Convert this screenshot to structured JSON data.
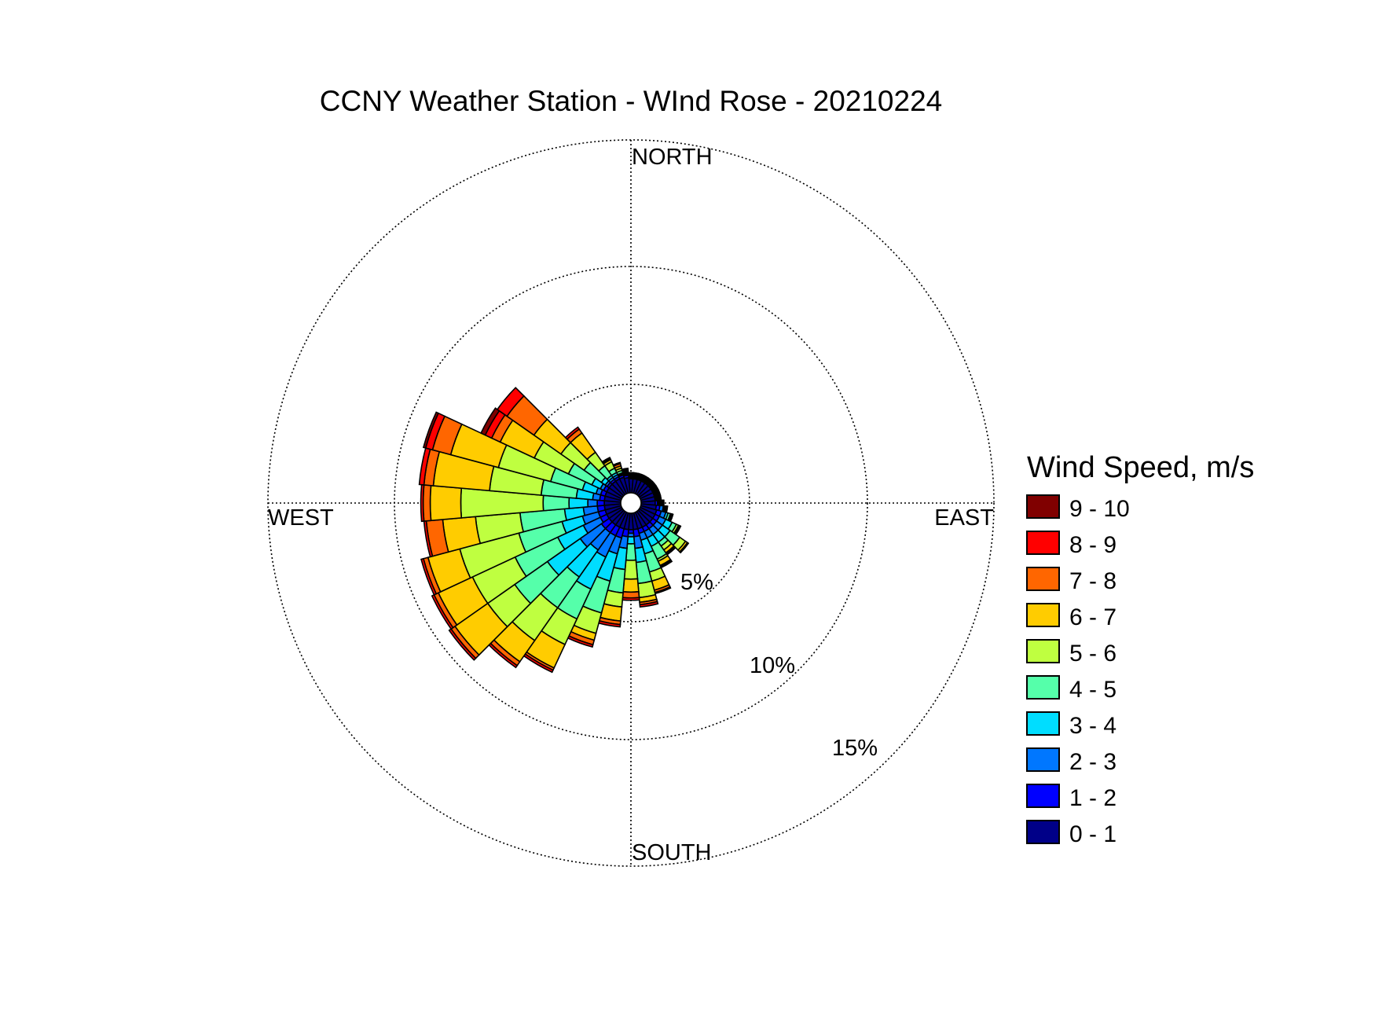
{
  "chart_data": {
    "type": "wind-rose",
    "title": "CCNY Weather Station - WInd Rose - 20210224",
    "direction_labels": {
      "north": "NORTH",
      "east": "EAST",
      "south": "SOUTH",
      "west": "WEST"
    },
    "radial_unit": "%",
    "radial_ticks": [
      {
        "value": 5,
        "label": "5%"
      },
      {
        "value": 10,
        "label": "10%"
      },
      {
        "value": 15,
        "label": "15%"
      }
    ],
    "rmax": 15,
    "grid": true,
    "legend": {
      "title": "Wind Speed, m/s",
      "position": "right",
      "bins": [
        {
          "label": "9 - 10",
          "color": "#800000"
        },
        {
          "label": "8 - 9",
          "color": "#ff0000"
        },
        {
          "label": "7 - 8",
          "color": "#ff6600"
        },
        {
          "label": "6 - 7",
          "color": "#ffcc00"
        },
        {
          "label": "5 - 6",
          "color": "#bfff40"
        },
        {
          "label": "4 - 5",
          "color": "#55ffaa"
        },
        {
          "label": "3 - 4",
          "color": "#00ddff"
        },
        {
          "label": "2 - 3",
          "color": "#0077ff"
        },
        {
          "label": "1 - 2",
          "color": "#0000ff"
        },
        {
          "label": "0 - 1",
          "color": "#000088"
        }
      ]
    },
    "bins_inner_to_outer": [
      "0 - 1",
      "1 - 2",
      "2 - 3",
      "3 - 4",
      "4 - 5",
      "5 - 6",
      "6 - 7",
      "7 - 8",
      "8 - 9",
      "9 - 10"
    ],
    "sectors": [
      {
        "direction_deg": 0,
        "cumulative": [
          0.6,
          0.65,
          0.7,
          0.75,
          0.8,
          0.82,
          0.84,
          0.85,
          0.86,
          0.86
        ]
      },
      {
        "direction_deg": 10,
        "cumulative": [
          0.6,
          0.65,
          0.7,
          0.75,
          0.8,
          0.82,
          0.84,
          0.85,
          0.86,
          0.86
        ]
      },
      {
        "direction_deg": 20,
        "cumulative": [
          0.6,
          0.65,
          0.7,
          0.75,
          0.8,
          0.82,
          0.84,
          0.85,
          0.86,
          0.86
        ]
      },
      {
        "direction_deg": 30,
        "cumulative": [
          0.6,
          0.65,
          0.7,
          0.75,
          0.8,
          0.82,
          0.84,
          0.85,
          0.86,
          0.86
        ]
      },
      {
        "direction_deg": 40,
        "cumulative": [
          0.6,
          0.65,
          0.7,
          0.75,
          0.8,
          0.82,
          0.84,
          0.85,
          0.86,
          0.86
        ]
      },
      {
        "direction_deg": 50,
        "cumulative": [
          0.6,
          0.65,
          0.7,
          0.75,
          0.8,
          0.82,
          0.84,
          0.85,
          0.86,
          0.86
        ]
      },
      {
        "direction_deg": 60,
        "cumulative": [
          0.6,
          0.65,
          0.7,
          0.75,
          0.8,
          0.82,
          0.84,
          0.85,
          0.86,
          0.86
        ]
      },
      {
        "direction_deg": 70,
        "cumulative": [
          0.6,
          0.65,
          0.7,
          0.75,
          0.8,
          0.82,
          0.84,
          0.85,
          0.86,
          0.86
        ]
      },
      {
        "direction_deg": 80,
        "cumulative": [
          0.6,
          0.65,
          0.7,
          0.75,
          0.8,
          0.82,
          0.84,
          0.85,
          0.86,
          0.86
        ]
      },
      {
        "direction_deg": 90,
        "cumulative": [
          0.6,
          0.7,
          0.75,
          0.8,
          0.85,
          0.9,
          0.93,
          0.95,
          0.97,
          0.97
        ]
      },
      {
        "direction_deg": 100,
        "cumulative": [
          0.65,
          0.8,
          0.95,
          1.0,
          1.05,
          1.08,
          1.1,
          1.12,
          1.13,
          1.13
        ]
      },
      {
        "direction_deg": 110,
        "cumulative": [
          0.7,
          0.9,
          1.1,
          1.2,
          1.3,
          1.35,
          1.38,
          1.4,
          1.42,
          1.42
        ]
      },
      {
        "direction_deg": 120,
        "cumulative": [
          0.7,
          0.9,
          1.2,
          1.5,
          1.7,
          1.8,
          1.85,
          1.88,
          1.9,
          1.9
        ]
      },
      {
        "direction_deg": 130,
        "cumulative": [
          0.7,
          0.9,
          1.2,
          1.6,
          2.1,
          2.4,
          2.5,
          2.52,
          2.55,
          2.55
        ]
      },
      {
        "direction_deg": 140,
        "cumulative": [
          0.7,
          0.9,
          1.2,
          1.6,
          1.8,
          2.0,
          2.15,
          2.2,
          2.25,
          2.25
        ]
      },
      {
        "direction_deg": 150,
        "cumulative": [
          0.7,
          0.9,
          1.2,
          1.6,
          2.2,
          2.3,
          2.5,
          2.55,
          2.6,
          2.6
        ]
      },
      {
        "direction_deg": 160,
        "cumulative": [
          0.7,
          0.9,
          1.2,
          1.8,
          2.6,
          3.0,
          3.4,
          3.5,
          3.55,
          3.55
        ]
      },
      {
        "direction_deg": 170,
        "cumulative": [
          0.7,
          1.0,
          1.5,
          2.1,
          3.0,
          3.6,
          3.8,
          3.9,
          4.0,
          4.0
        ]
      },
      {
        "direction_deg": 180,
        "cumulative": [
          0.7,
          0.85,
          1.0,
          1.3,
          2.0,
          2.8,
          3.35,
          3.6,
          3.7,
          3.7
        ]
      },
      {
        "direction_deg": 190,
        "cumulative": [
          0.7,
          1.0,
          1.5,
          2.4,
          3.4,
          4.0,
          4.6,
          4.75,
          4.85,
          4.85
        ]
      },
      {
        "direction_deg": 200,
        "cumulative": [
          0.7,
          1.1,
          1.8,
          3.0,
          4.4,
          5.3,
          5.6,
          5.8,
          5.9,
          5.9
        ]
      },
      {
        "direction_deg": 210,
        "cumulative": [
          0.7,
          1.1,
          2.1,
          3.6,
          5.0,
          6.2,
          7.3,
          7.4,
          7.5,
          7.5
        ]
      },
      {
        "direction_deg": 220,
        "cumulative": [
          0.7,
          1.1,
          2.0,
          3.4,
          5.0,
          6.7,
          7.8,
          8.0,
          8.1,
          8.1
        ]
      },
      {
        "direction_deg": 230,
        "cumulative": [
          0.7,
          1.1,
          2.2,
          3.9,
          5.6,
          7.0,
          8.7,
          8.9,
          9.0,
          9.0
        ]
      },
      {
        "direction_deg": 240,
        "cumulative": [
          0.7,
          1.0,
          1.8,
          3.0,
          5.0,
          7.0,
          8.6,
          8.8,
          8.9,
          8.9
        ]
      },
      {
        "direction_deg": 250,
        "cumulative": [
          0.7,
          1.0,
          1.7,
          2.6,
          4.5,
          7.1,
          8.5,
          8.7,
          8.8,
          8.8
        ]
      },
      {
        "direction_deg": 260,
        "cumulative": [
          0.7,
          1.0,
          1.6,
          2.4,
          4.3,
          6.2,
          7.6,
          8.3,
          8.4,
          8.4
        ]
      },
      {
        "direction_deg": 270,
        "cumulative": [
          0.7,
          1.0,
          1.4,
          2.2,
          3.3,
          6.8,
          8.1,
          8.4,
          8.5,
          8.5
        ]
      },
      {
        "direction_deg": 280,
        "cumulative": [
          0.7,
          0.9,
          1.2,
          1.9,
          3.4,
          5.6,
          8.0,
          8.4,
          8.6,
          8.6
        ]
      },
      {
        "direction_deg": 290,
        "cumulative": [
          0.7,
          0.9,
          1.1,
          1.7,
          3.1,
          5.4,
          7.5,
          8.3,
          8.6,
          8.7
        ]
      },
      {
        "direction_deg": 300,
        "cumulative": [
          0.7,
          0.85,
          1.0,
          1.4,
          2.5,
          4.1,
          5.7,
          6.1,
          6.4,
          6.6
        ]
      },
      {
        "direction_deg": 310,
        "cumulative": [
          0.7,
          0.8,
          0.9,
          1.1,
          2.0,
          3.2,
          4.6,
          6.0,
          6.5,
          6.5
        ]
      },
      {
        "direction_deg": 320,
        "cumulative": [
          0.7,
          0.8,
          0.9,
          1.0,
          1.5,
          2.2,
          3.2,
          3.4,
          3.5,
          3.5
        ]
      },
      {
        "direction_deg": 330,
        "cumulative": [
          0.7,
          0.8,
          0.9,
          1.0,
          1.2,
          1.5,
          1.6,
          1.65,
          1.7,
          1.7
        ]
      },
      {
        "direction_deg": 340,
        "cumulative": [
          0.7,
          0.8,
          0.85,
          0.9,
          1.0,
          1.1,
          1.2,
          1.3,
          1.35,
          1.35
        ]
      },
      {
        "direction_deg": 350,
        "cumulative": [
          0.65,
          0.75,
          0.8,
          0.85,
          0.9,
          0.95,
          1.0,
          1.02,
          1.05,
          1.05
        ]
      }
    ]
  }
}
